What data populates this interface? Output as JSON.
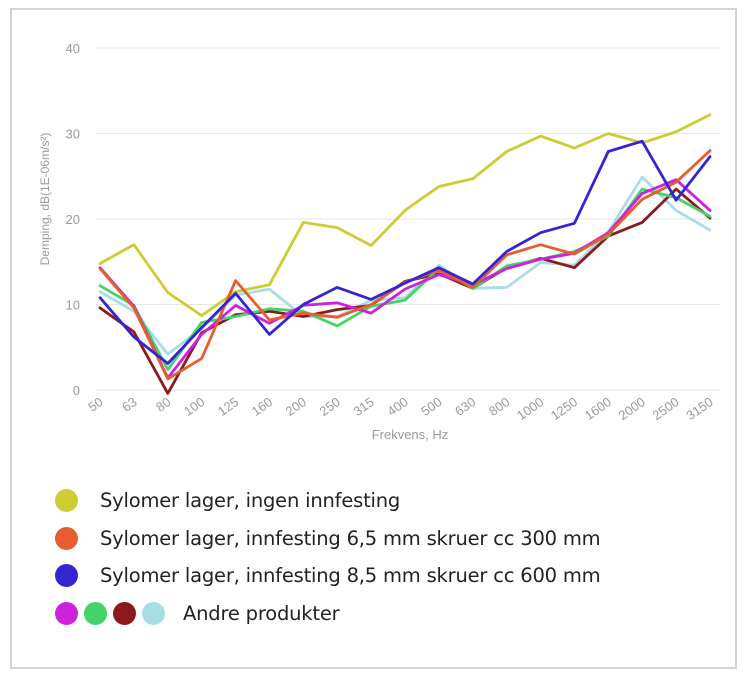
{
  "chart_data": {
    "type": "line",
    "xlabel": "Frekvens, Hz",
    "ylabel": "Demping, dB(1E-06m/s²)",
    "ylim": [
      0,
      40
    ],
    "yticks": [
      0,
      10,
      20,
      30,
      40
    ],
    "grid": true,
    "categories": [
      "50",
      "63",
      "80",
      "100",
      "125",
      "160",
      "200",
      "250",
      "315",
      "400",
      "500",
      "630",
      "800",
      "1000",
      "1250",
      "1600",
      "2000",
      "2500",
      "3150"
    ],
    "series": [
      {
        "name": "Sylomer lager, ingen innfesting",
        "color": "#cccc33",
        "values": [
          14.8,
          17.0,
          11.4,
          8.7,
          11.5,
          12.3,
          19.6,
          19.0,
          16.9,
          21.0,
          23.8,
          24.7,
          27.9,
          29.7,
          28.3,
          30.0,
          28.9,
          30.2,
          32.2
        ]
      },
      {
        "name": "Sylomer lager, innfesting 6,5 mm skruer cc 300 mm",
        "color": "#e85d2f",
        "values": [
          14.2,
          9.6,
          1.3,
          3.7,
          12.8,
          8.2,
          9.0,
          8.5,
          10.0,
          12.6,
          14.0,
          12.0,
          15.8,
          17.0,
          15.9,
          18.2,
          22.3,
          24.3,
          28.0
        ]
      },
      {
        "name": "Sylomer lager, innfesting 8,5 mm skruer cc 600 mm",
        "color": "#3524d4",
        "values": [
          10.8,
          6.2,
          3.1,
          7.3,
          11.3,
          6.5,
          10.0,
          12.0,
          10.6,
          12.5,
          14.3,
          12.4,
          16.2,
          18.4,
          19.5,
          27.9,
          29.1,
          22.2,
          27.3
        ]
      },
      {
        "name": "Andre produkter (magenta)",
        "color": "#cc22dd",
        "values": [
          14.3,
          9.8,
          1.4,
          6.5,
          9.9,
          7.8,
          9.9,
          10.2,
          9.0,
          11.8,
          13.5,
          12.3,
          14.2,
          15.3,
          16.0,
          18.4,
          23.0,
          24.6,
          21.0
        ]
      },
      {
        "name": "Andre produkter (grønn)",
        "color": "#44d366",
        "values": [
          12.2,
          9.9,
          2.4,
          7.9,
          8.6,
          9.5,
          9.2,
          7.5,
          9.8,
          10.5,
          14.2,
          11.9,
          14.5,
          15.3,
          16.2,
          18.0,
          23.5,
          22.5,
          20.3
        ]
      },
      {
        "name": "Andre produkter (mørkerød)",
        "color": "#8b1a1a",
        "values": [
          9.6,
          6.8,
          -0.4,
          6.7,
          8.8,
          9.2,
          8.6,
          9.4,
          9.9,
          12.7,
          13.6,
          11.9,
          14.3,
          15.4,
          14.3,
          18.0,
          19.6,
          23.5,
          20.1
        ]
      },
      {
        "name": "Andre produkter (lyseblå)",
        "color": "#a8dde8",
        "values": [
          11.5,
          9.2,
          4.2,
          7.2,
          11.1,
          11.8,
          8.6,
          8.6,
          10.5,
          10.8,
          14.6,
          11.9,
          12.0,
          14.9,
          14.6,
          18.5,
          24.9,
          21.0,
          18.7
        ]
      }
    ]
  },
  "legend": {
    "items": [
      {
        "label": "Sylomer lager, ingen innfesting",
        "colors": [
          "#cccc33"
        ]
      },
      {
        "label": "Sylomer lager, innfesting 6,5 mm skruer cc 300 mm",
        "colors": [
          "#e85d2f"
        ]
      },
      {
        "label": "Sylomer lager, innfesting 8,5 mm skruer cc 600 mm",
        "colors": [
          "#3524d4"
        ]
      },
      {
        "label": "Andre produkter",
        "colors": [
          "#cc22dd",
          "#44d366",
          "#8b1a1a",
          "#a8dde8"
        ]
      }
    ]
  }
}
